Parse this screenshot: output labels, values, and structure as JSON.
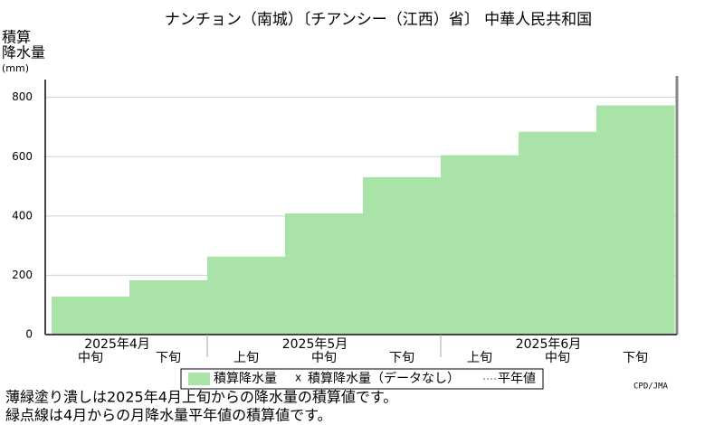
{
  "chart_data": {
    "type": "step-area",
    "title": "ナンチョン（南城）〔チアンシー（江西）省〕 中華人民共和国",
    "y_label": "積算\n降水量\n(mm)",
    "months": [
      {
        "name": "2025年4月",
        "dekads": [
          "中旬",
          "下旬"
        ]
      },
      {
        "name": "2025年5月",
        "dekads": [
          "上旬",
          "中旬",
          "下旬"
        ]
      },
      {
        "name": "2025年6月",
        "dekads": [
          "上旬",
          "中旬",
          "下旬"
        ]
      }
    ],
    "series": [
      {
        "name": "積算降水量",
        "color": "#aae3a8",
        "values": [
          128,
          183,
          263,
          409,
          531,
          605,
          684,
          773
        ]
      }
    ],
    "legend": [
      "積算降水量",
      "積算降水量（データなし）",
      "平年値"
    ],
    "ylim": [
      0,
      860
    ],
    "yticks": [
      0,
      200,
      400,
      600,
      800
    ],
    "grid": true,
    "notes": [
      "薄緑塗り潰しは2025年4月上旬からの降水量の積算値です。",
      "緑点線は4月からの月降水量平年値の積算値です。"
    ],
    "credit": "CPD/JMA"
  }
}
